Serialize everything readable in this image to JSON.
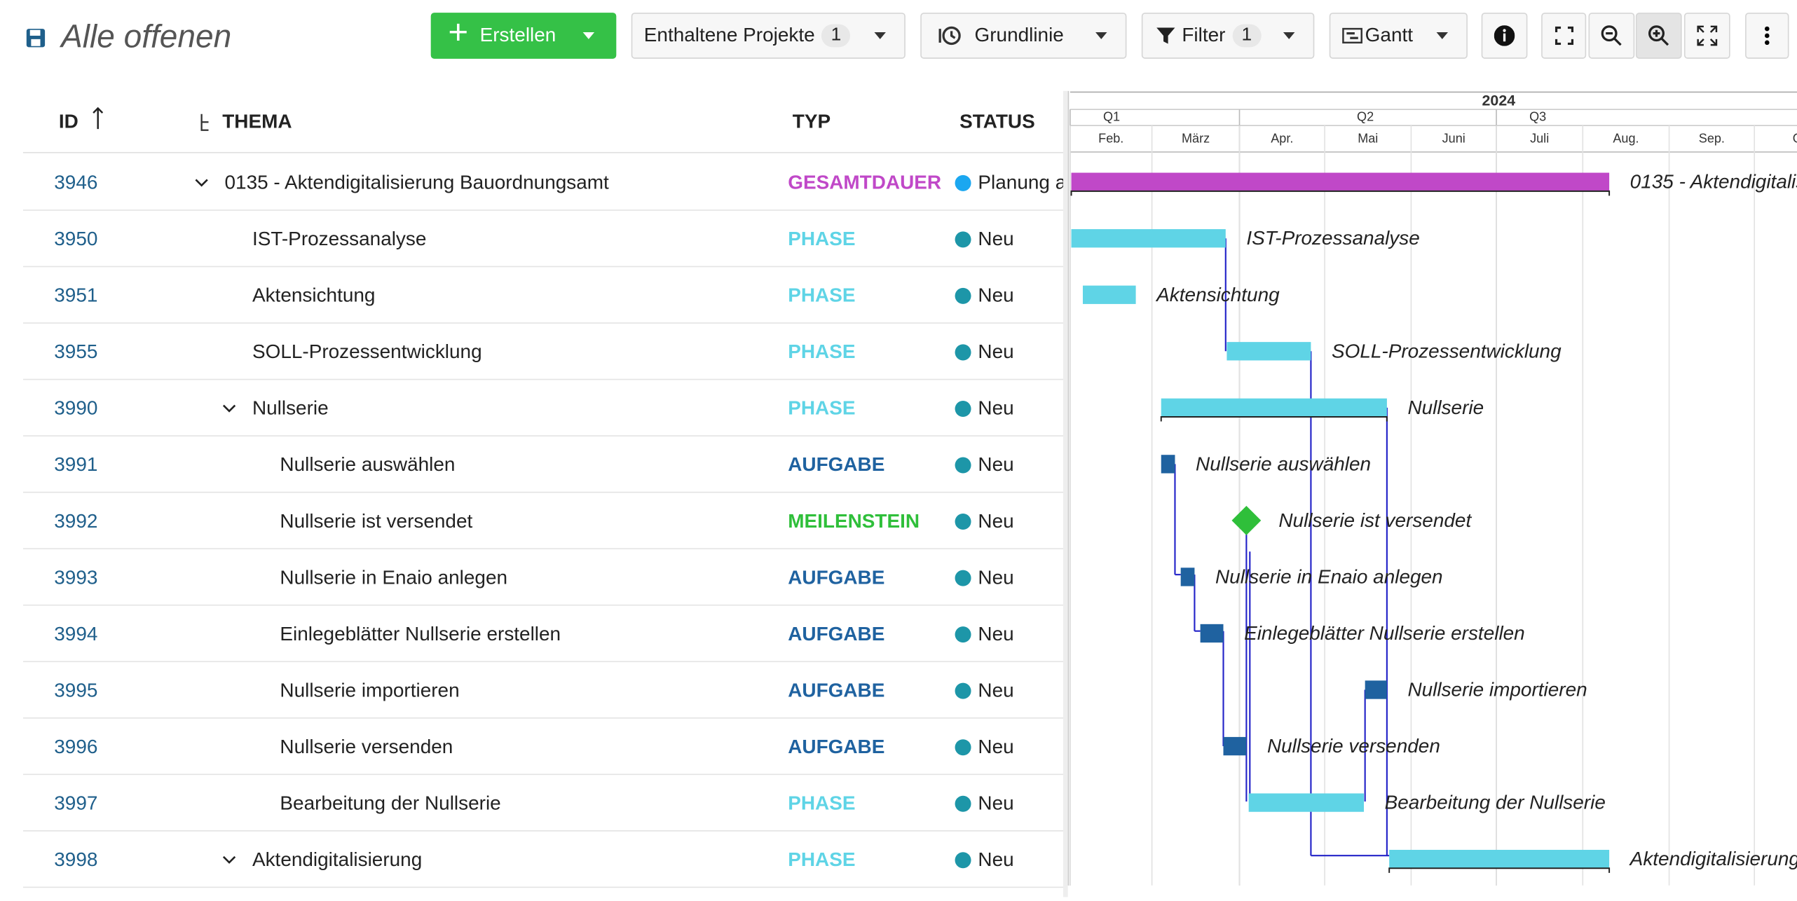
{
  "header": {
    "title": "Alle offenen"
  },
  "toolbar": {
    "create": "Erstellen",
    "projects": "Enthaltene Projekte",
    "projects_count": "1",
    "baseline": "Grundlinie",
    "filter": "Filter",
    "filter_count": "1",
    "view": "Gantt"
  },
  "table": {
    "columns": [
      "ID",
      "THEMA",
      "TYP",
      "STATUS"
    ],
    "rows": [
      {
        "id": "3946",
        "subject": "0135 - Aktendigitalisierung Bauordnungsamt",
        "type": "GESAMTDAUER",
        "status": "Planung a"
      },
      {
        "id": "3950",
        "subject": "IST-Prozessanalyse",
        "type": "PHASE",
        "status": "Neu"
      },
      {
        "id": "3951",
        "subject": "Aktensichtung",
        "type": "PHASE",
        "status": "Neu"
      },
      {
        "id": "3955",
        "subject": "SOLL-Prozessentwicklung",
        "type": "PHASE",
        "status": "Neu"
      },
      {
        "id": "3990",
        "subject": "Nullserie",
        "type": "PHASE",
        "status": "Neu"
      },
      {
        "id": "3991",
        "subject": "Nullserie auswählen",
        "type": "AUFGABE",
        "status": "Neu"
      },
      {
        "id": "3992",
        "subject": "Nullserie ist versendet",
        "type": "MEILENSTEIN",
        "status": "Neu"
      },
      {
        "id": "3993",
        "subject": "Nullserie in Enaio anlegen",
        "type": "AUFGABE",
        "status": "Neu"
      },
      {
        "id": "3994",
        "subject": "Einlegeblätter Nullserie erstellen",
        "type": "AUFGABE",
        "status": "Neu"
      },
      {
        "id": "3995",
        "subject": "Nullserie importieren",
        "type": "AUFGABE",
        "status": "Neu"
      },
      {
        "id": "3996",
        "subject": "Nullserie versenden",
        "type": "AUFGABE",
        "status": "Neu"
      },
      {
        "id": "3997",
        "subject": "Bearbeitung der Nullserie",
        "type": "PHASE",
        "status": "Neu"
      },
      {
        "id": "3998",
        "subject": "Aktendigitalisierung",
        "type": "PHASE",
        "status": "Neu"
      }
    ]
  },
  "gantt": {
    "year": "2024",
    "quarters": [
      "Q1",
      "Q2",
      "Q3"
    ],
    "months": [
      "Feb.",
      "März",
      "Apr.",
      "Mai",
      "Juni",
      "Juli",
      "Aug.",
      "Sep.",
      "O"
    ]
  }
}
